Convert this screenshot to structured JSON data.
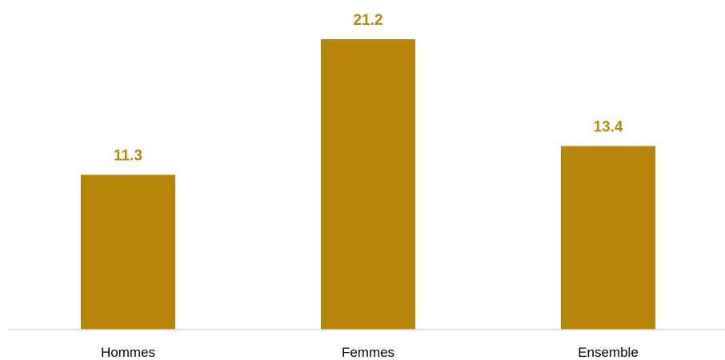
{
  "chart_data": {
    "type": "bar",
    "categories": [
      "Hommes",
      "Femmes",
      "Ensemble"
    ],
    "values": [
      11.3,
      21.2,
      13.4
    ],
    "title": "",
    "xlabel": "",
    "ylabel": "",
    "ylim": [
      0,
      21.2
    ],
    "grid": false,
    "legend": "none",
    "data_labels": [
      "11.3",
      "21.2",
      "13.4"
    ],
    "colors": {
      "bar": "#B8860B",
      "data_label": "#B8860B",
      "axis": "#D9D9D9",
      "tick_label": "#000000"
    }
  }
}
